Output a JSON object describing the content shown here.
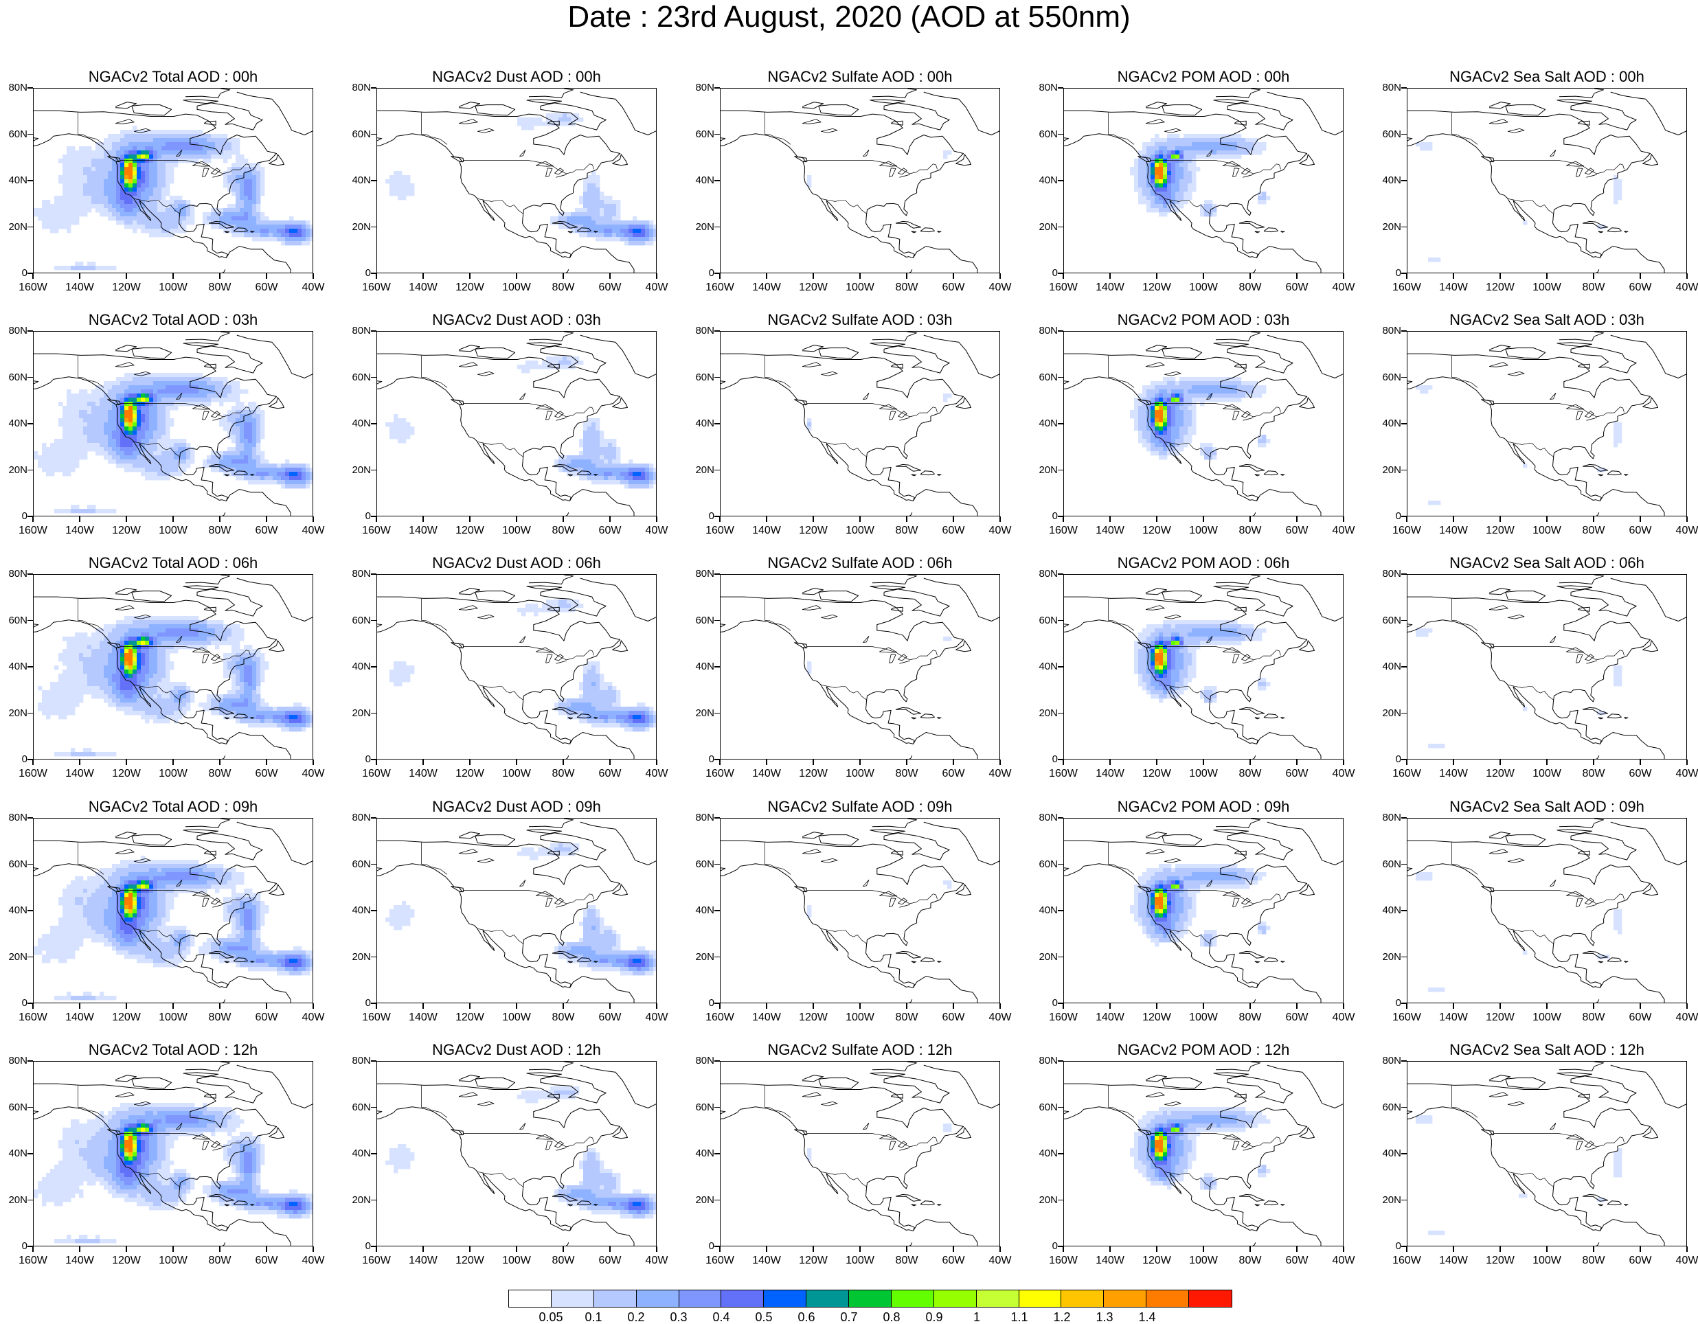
{
  "title": "Date : 23rd August, 2020 (AOD at 550nm)",
  "panel_titles": [
    [
      "NGACv2 Total AOD : 00h",
      "NGACv2 Dust AOD : 00h",
      "NGACv2 Sulfate AOD : 00h",
      "NGACv2 POM AOD : 00h",
      "NGACv2 Sea Salt AOD : 00h"
    ],
    [
      "NGACv2 Total AOD : 03h",
      "NGACv2 Dust AOD : 03h",
      "NGACv2 Sulfate AOD : 03h",
      "NGACv2 POM AOD : 03h",
      "NGACv2 Sea Salt AOD : 03h"
    ],
    [
      "NGACv2 Total AOD : 06h",
      "NGACv2 Dust AOD : 06h",
      "NGACv2 Sulfate AOD : 06h",
      "NGACv2 POM AOD : 06h",
      "NGACv2 Sea Salt AOD : 06h"
    ],
    [
      "NGACv2 Total AOD : 09h",
      "NGACv2 Dust AOD : 09h",
      "NGACv2 Sulfate AOD : 09h",
      "NGACv2 POM AOD : 09h",
      "NGACv2 Sea Salt  AOD : 09h"
    ],
    [
      "NGACv2 Total AOD  : 12h",
      "NGACv2 Dust AOD : 12h",
      "NGACv2 Sulfate AOD : 12h",
      "NGACv2 POM  AOD : 12h",
      "NGACv2 Sea Salt  AOD : 12h"
    ]
  ],
  "map_extent": {
    "lon_range": [
      -160,
      -40
    ],
    "lat_range": [
      0,
      80
    ]
  },
  "x_tick_labels": [
    "160W",
    "140W",
    "120W",
    "100W",
    "80W",
    "60W",
    "40W"
  ],
  "y_tick_labels": [
    "80N",
    "60N",
    "40N",
    "20N",
    "0"
  ],
  "colorbar": {
    "colors": [
      "#ffffff",
      "#d6e2ff",
      "#b5c9ff",
      "#8eb2ff",
      "#7f96ff",
      "#6370f8",
      "#0063ff",
      "#009696",
      "#00c633",
      "#63ff00",
      "#96ff00",
      "#c6ff33",
      "#ffff00",
      "#ffc600",
      "#ffa000",
      "#ff7c00",
      "#ff1900"
    ],
    "labels": [
      "0.05",
      "0.1",
      "0.2",
      "0.3",
      "0.4",
      "0.5",
      "0.6",
      "0.7",
      "0.8",
      "0.9",
      "1",
      "1.1",
      "1.2",
      "1.3",
      "1.4"
    ]
  },
  "panel_types": [
    "total",
    "dust",
    "sulfate",
    "pom",
    "seasalt"
  ]
}
